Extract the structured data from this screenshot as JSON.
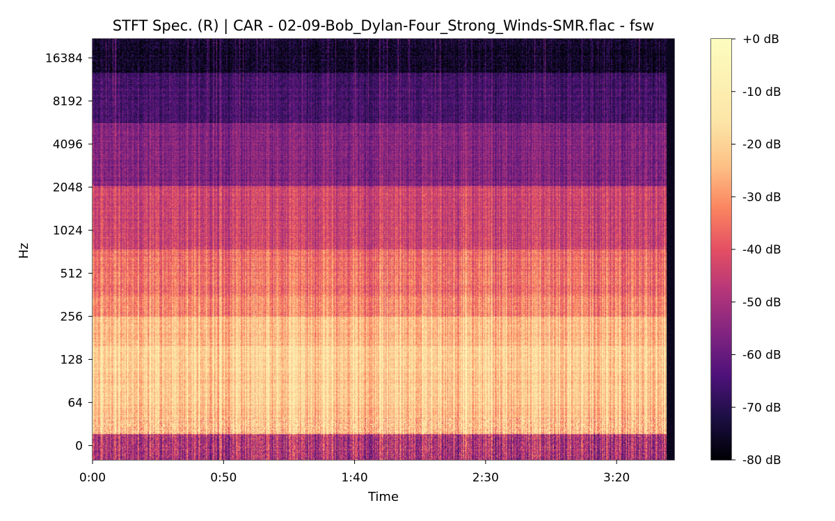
{
  "chart_data": {
    "type": "heatmap",
    "title": "STFT Spec. (R) | CAR - 02-09-Bob_Dylan-Four_Strong_Winds-SMR.flac - fsw",
    "xlabel": "Time",
    "ylabel": "Hz",
    "x_ticks": [
      {
        "label": "0:00",
        "seconds": 0
      },
      {
        "label": "0:50",
        "seconds": 50
      },
      {
        "label": "1:40",
        "seconds": 100
      },
      {
        "label": "2:30",
        "seconds": 150
      },
      {
        "label": "3:20",
        "seconds": 200
      }
    ],
    "xlim_seconds": [
      0,
      222
    ],
    "signal_end_seconds": 219,
    "y_ticks": [
      "16384",
      "8192",
      "4096",
      "2048",
      "1024",
      "512",
      "256",
      "128",
      "64",
      "0"
    ],
    "y_scale": "symlog (base 2)",
    "colormap": "magma",
    "colorbar": {
      "ticks": [
        "+0 dB",
        "-10 dB",
        "-20 dB",
        "-30 dB",
        "-40 dB",
        "-50 dB",
        "-60 dB",
        "-70 dB",
        "-80 dB"
      ],
      "range_db": [
        -80,
        0
      ]
    },
    "grid": false
  }
}
